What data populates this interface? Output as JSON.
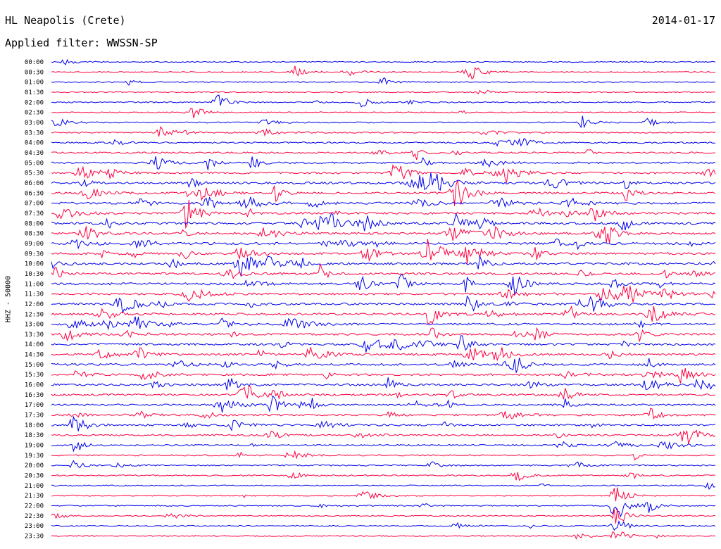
{
  "header": {
    "station": "HL Neapolis (Crete)",
    "date": "2014-01-17",
    "filter": "Applied filter: WWSSN-SP"
  },
  "colors": {
    "trace_a": "#0000ee",
    "trace_b": "#ff0040",
    "background": "#ffffff"
  },
  "chart_data": {
    "type": "line",
    "subtype": "helicorder",
    "ylabel": "HHZ - 50000",
    "row_labels": [
      "00:00",
      "00:30",
      "01:00",
      "01:30",
      "02:00",
      "02:30",
      "03:00",
      "03:30",
      "04:00",
      "04:30",
      "05:00",
      "05:30",
      "06:00",
      "06:30",
      "07:00",
      "07:30",
      "08:00",
      "08:30",
      "09:00",
      "09:30",
      "10:00",
      "10:30",
      "11:00",
      "11:30",
      "12:00",
      "12:30",
      "13:00",
      "13:30",
      "14:00",
      "14:30",
      "15:00",
      "15:30",
      "16:00",
      "16:30",
      "17:00",
      "17:30",
      "18:00",
      "18:30",
      "19:00",
      "19:30",
      "20:00",
      "20:30",
      "21:00",
      "21:30",
      "22:00",
      "22:30",
      "23:00",
      "23:30"
    ],
    "row_minutes": 30,
    "row_colors": [
      "trace_a",
      "trace_b"
    ],
    "activity_level": [
      0.12,
      0.15,
      0.15,
      0.12,
      0.2,
      0.15,
      0.18,
      0.3,
      0.4,
      0.45,
      0.55,
      0.65,
      0.7,
      0.7,
      0.75,
      0.75,
      0.8,
      0.8,
      0.8,
      0.8,
      0.8,
      0.8,
      0.8,
      0.75,
      0.75,
      0.75,
      0.7,
      0.7,
      0.7,
      0.7,
      0.7,
      0.65,
      0.65,
      0.65,
      0.6,
      0.55,
      0.55,
      0.45,
      0.4,
      0.3,
      0.25,
      0.22,
      0.2,
      0.2,
      0.2,
      0.15,
      0.15,
      0.15
    ],
    "events": [
      {
        "row": 1,
        "minute": 11,
        "amp": 1.0
      },
      {
        "row": 1,
        "minute": 19,
        "amp": 0.9
      },
      {
        "row": 2,
        "minute": 15,
        "amp": 0.8
      },
      {
        "row": 4,
        "minute": 7.5,
        "amp": 2.0
      },
      {
        "row": 4,
        "minute": 14,
        "amp": 0.8
      },
      {
        "row": 5,
        "minute": 6.5,
        "amp": 0.6
      },
      {
        "row": 6,
        "minute": 24,
        "amp": 1.0
      },
      {
        "row": 6,
        "minute": 27,
        "amp": 0.8
      },
      {
        "row": 7,
        "minute": 5,
        "amp": 1.2
      },
      {
        "row": 11,
        "minute": 15.5,
        "amp": 1.5
      },
      {
        "row": 20,
        "minute": 8.5,
        "amp": 2.5
      },
      {
        "row": 19,
        "minute": 8.5,
        "amp": 2.0
      },
      {
        "row": 22,
        "minute": 14,
        "amp": 1.2
      },
      {
        "row": 34,
        "minute": 10,
        "amp": 1.5
      },
      {
        "row": 36,
        "minute": 1,
        "amp": 1.5
      },
      {
        "row": 38,
        "minute": 1,
        "amp": 1.5
      },
      {
        "row": 44,
        "minute": 25.5,
        "amp": 3.5
      },
      {
        "row": 43,
        "minute": 25.5,
        "amp": 2.0
      },
      {
        "row": 45,
        "minute": 25.5,
        "amp": 2.0
      },
      {
        "row": 46,
        "minute": 25.5,
        "amp": 1.5
      },
      {
        "row": 47,
        "minute": 25.5,
        "amp": 1.3
      },
      {
        "row": 41,
        "minute": 21,
        "amp": 1.0
      },
      {
        "row": 40,
        "minute": 1,
        "amp": 0.8
      },
      {
        "row": 44,
        "minute": 27,
        "amp": 1.0
      }
    ]
  }
}
